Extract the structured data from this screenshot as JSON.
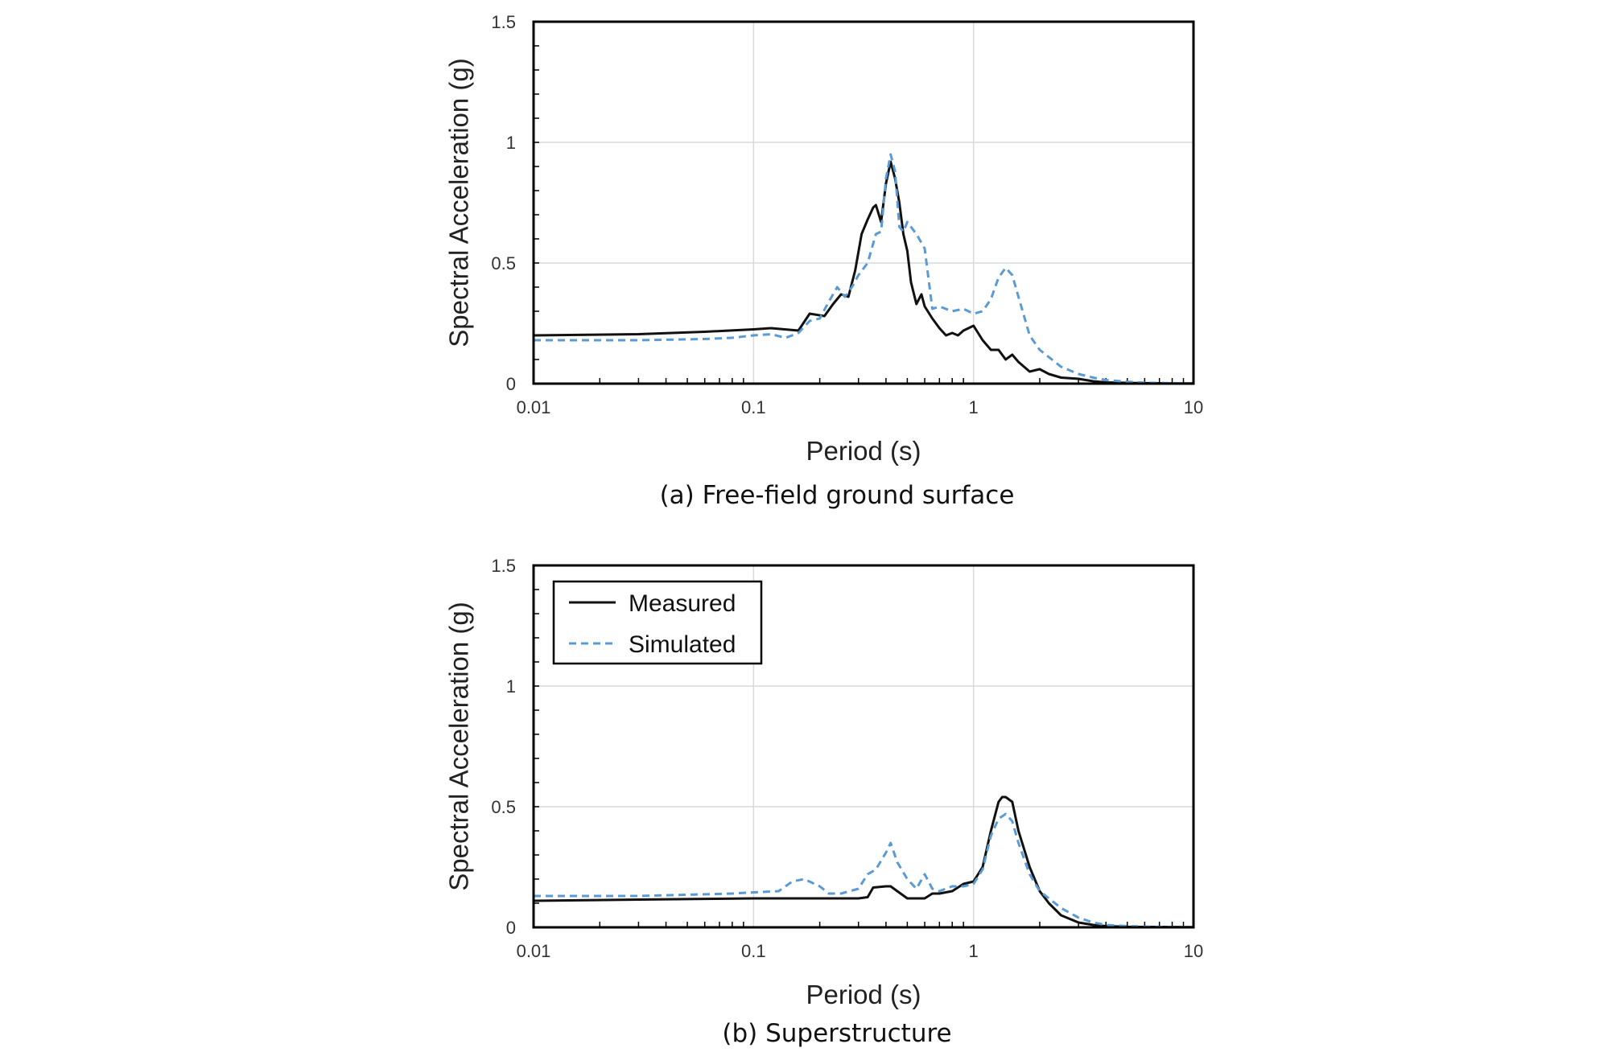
{
  "colors": {
    "measured": "#111111",
    "simulated": "#5b9bd5",
    "grid": "#d9d9d9",
    "frame": "#000000"
  },
  "legend": {
    "measured": "Measured",
    "simulated": "Simulated"
  },
  "chart_data": [
    {
      "type": "line",
      "caption": "(a) Free-field ground surface",
      "xlabel": "Period (s)",
      "ylabel": "Spectral Acceleration (g)",
      "xscale": "log",
      "xlim": [
        0.01,
        10
      ],
      "ylim": [
        0,
        1.5
      ],
      "xticks": [
        0.01,
        0.1,
        1,
        10
      ],
      "xtick_labels": [
        "0.01",
        "0.1",
        "1",
        "10"
      ],
      "yticks": [
        0,
        0.5,
        1,
        1.5
      ],
      "ytick_labels": [
        "0",
        "0.5",
        "1",
        "1.5"
      ],
      "grid": true,
      "legend_shown": false,
      "series": [
        {
          "name": "Measured",
          "style": "solid",
          "x": [
            0.01,
            0.03,
            0.06,
            0.1,
            0.12,
            0.16,
            0.18,
            0.21,
            0.23,
            0.25,
            0.27,
            0.29,
            0.31,
            0.33,
            0.35,
            0.36,
            0.38,
            0.4,
            0.42,
            0.44,
            0.46,
            0.48,
            0.5,
            0.52,
            0.55,
            0.58,
            0.6,
            0.65,
            0.7,
            0.75,
            0.8,
            0.85,
            0.9,
            1.0,
            1.1,
            1.2,
            1.3,
            1.4,
            1.5,
            1.6,
            1.8,
            2.0,
            2.2,
            2.5,
            3.0,
            3.5,
            4.0,
            5.0,
            6.0,
            8.0,
            10.0
          ],
          "y": [
            0.2,
            0.205,
            0.215,
            0.225,
            0.23,
            0.22,
            0.29,
            0.28,
            0.33,
            0.37,
            0.36,
            0.47,
            0.62,
            0.68,
            0.73,
            0.74,
            0.67,
            0.83,
            0.92,
            0.85,
            0.75,
            0.62,
            0.55,
            0.42,
            0.33,
            0.37,
            0.32,
            0.27,
            0.23,
            0.2,
            0.21,
            0.2,
            0.22,
            0.24,
            0.18,
            0.14,
            0.14,
            0.1,
            0.12,
            0.09,
            0.05,
            0.06,
            0.04,
            0.025,
            0.02,
            0.01,
            0.005,
            0.003,
            0.002,
            0.001,
            0.001
          ]
        },
        {
          "name": "Simulated",
          "style": "dashed",
          "x": [
            0.01,
            0.03,
            0.06,
            0.08,
            0.1,
            0.12,
            0.14,
            0.16,
            0.18,
            0.2,
            0.22,
            0.24,
            0.26,
            0.28,
            0.3,
            0.33,
            0.36,
            0.38,
            0.4,
            0.42,
            0.44,
            0.46,
            0.48,
            0.5,
            0.55,
            0.6,
            0.65,
            0.7,
            0.8,
            0.9,
            1.0,
            1.1,
            1.2,
            1.3,
            1.4,
            1.5,
            1.6,
            1.8,
            2.0,
            2.5,
            3.0,
            3.5,
            4.0,
            5.0,
            6.0,
            8.0,
            10.0
          ],
          "y": [
            0.18,
            0.18,
            0.185,
            0.19,
            0.2,
            0.205,
            0.19,
            0.21,
            0.26,
            0.27,
            0.34,
            0.4,
            0.36,
            0.4,
            0.45,
            0.5,
            0.62,
            0.63,
            0.85,
            0.95,
            0.88,
            0.65,
            0.63,
            0.67,
            0.62,
            0.56,
            0.31,
            0.32,
            0.3,
            0.31,
            0.29,
            0.3,
            0.35,
            0.44,
            0.48,
            0.45,
            0.36,
            0.2,
            0.14,
            0.07,
            0.04,
            0.025,
            0.015,
            0.008,
            0.004,
            0.002,
            0.001
          ]
        }
      ]
    },
    {
      "type": "line",
      "caption": "(b) Superstructure",
      "xlabel": "Period (s)",
      "ylabel": "Spectral Acceleration (g)",
      "xscale": "log",
      "xlim": [
        0.01,
        10
      ],
      "ylim": [
        0,
        1.5
      ],
      "xticks": [
        0.01,
        0.1,
        1,
        10
      ],
      "xtick_labels": [
        "0.01",
        "0.1",
        "1",
        "10"
      ],
      "yticks": [
        0,
        0.5,
        1,
        1.5
      ],
      "ytick_labels": [
        "0",
        "0.5",
        "1",
        "1.5"
      ],
      "grid": true,
      "legend_shown": true,
      "legend_position": "top-left",
      "series": [
        {
          "name": "Measured",
          "style": "solid",
          "x": [
            0.01,
            0.03,
            0.06,
            0.1,
            0.15,
            0.2,
            0.3,
            0.33,
            0.35,
            0.4,
            0.42,
            0.45,
            0.5,
            0.55,
            0.6,
            0.65,
            0.7,
            0.8,
            0.9,
            1.0,
            1.1,
            1.2,
            1.3,
            1.35,
            1.4,
            1.5,
            1.6,
            1.8,
            2.0,
            2.2,
            2.5,
            3.0,
            3.5,
            4.0,
            5.0,
            10.0
          ],
          "y": [
            0.11,
            0.115,
            0.118,
            0.12,
            0.12,
            0.12,
            0.12,
            0.125,
            0.165,
            0.17,
            0.17,
            0.15,
            0.12,
            0.12,
            0.12,
            0.14,
            0.14,
            0.15,
            0.18,
            0.19,
            0.25,
            0.4,
            0.52,
            0.54,
            0.54,
            0.52,
            0.4,
            0.25,
            0.15,
            0.1,
            0.05,
            0.02,
            0.01,
            0.005,
            0.002,
            0.001
          ]
        },
        {
          "name": "Simulated",
          "style": "dashed",
          "x": [
            0.01,
            0.03,
            0.05,
            0.08,
            0.1,
            0.13,
            0.15,
            0.17,
            0.2,
            0.22,
            0.25,
            0.3,
            0.33,
            0.36,
            0.4,
            0.42,
            0.45,
            0.5,
            0.55,
            0.6,
            0.65,
            0.7,
            0.8,
            0.9,
            1.0,
            1.1,
            1.2,
            1.3,
            1.4,
            1.5,
            1.6,
            1.8,
            2.0,
            2.5,
            3.0,
            3.5,
            4.0,
            5.0,
            6.0,
            8.0,
            10.0
          ],
          "y": [
            0.13,
            0.13,
            0.135,
            0.14,
            0.145,
            0.15,
            0.19,
            0.2,
            0.17,
            0.14,
            0.14,
            0.16,
            0.22,
            0.24,
            0.31,
            0.35,
            0.27,
            0.2,
            0.16,
            0.22,
            0.16,
            0.15,
            0.17,
            0.17,
            0.18,
            0.24,
            0.38,
            0.45,
            0.47,
            0.44,
            0.35,
            0.22,
            0.15,
            0.08,
            0.04,
            0.02,
            0.01,
            0.005,
            0.003,
            0.001,
            0.001
          ]
        }
      ]
    }
  ]
}
